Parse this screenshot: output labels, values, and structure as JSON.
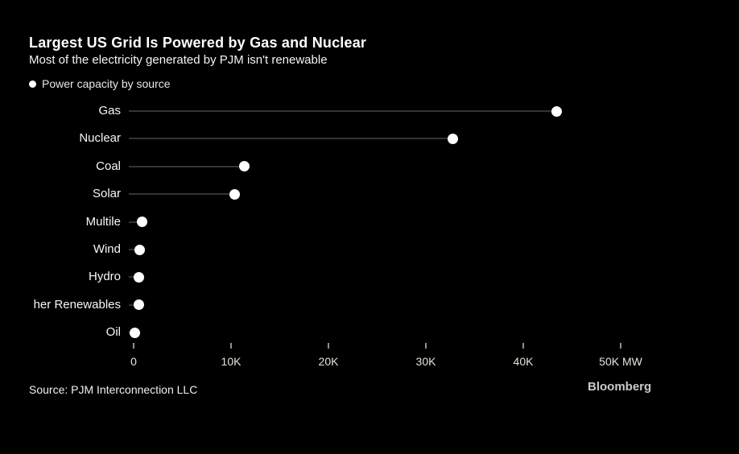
{
  "header": {
    "title": "Largest US Grid Is Powered by Gas and Nuclear",
    "subtitle": "Most of the electricity generated by PJM isn't renewable"
  },
  "legend": {
    "label": "Power capacity by source"
  },
  "chart_data": {
    "type": "bar",
    "style": "lollipop",
    "orientation": "horizontal",
    "title": "Largest US Grid Is Powered by Gas and Nuclear",
    "subtitle": "Most of the electricity generated by PJM isn't renewable",
    "legend": [
      "Power capacity by source"
    ],
    "legend_position": "top-left",
    "categories": [
      "Gas",
      "Nuclear",
      "Coal",
      "Solar",
      "Multile",
      "Wind",
      "Hydro",
      "her Renewables",
      "Oil"
    ],
    "values": [
      43400,
      32800,
      11400,
      10400,
      830,
      640,
      550,
      550,
      100
    ],
    "unit": "MW",
    "xlabel": "",
    "ylabel": "",
    "xlim": [
      0,
      50000
    ],
    "x_ticks": [
      {
        "label": "0",
        "value": 0
      },
      {
        "label": "10K",
        "value": 10000
      },
      {
        "label": "20K",
        "value": 20000
      },
      {
        "label": "30K",
        "value": 30000
      },
      {
        "label": "40K",
        "value": 40000
      },
      {
        "label": "50K MW",
        "value": 50000
      }
    ],
    "grid": false
  },
  "colors": {
    "background": "#000000",
    "dot": "#ffffff",
    "stem": "#343434",
    "title_text": "#ffffff",
    "axis_text": "#e7e3d9"
  },
  "footer": {
    "source": "Source: PJM Interconnection LLC",
    "brand": "Bloomberg"
  }
}
